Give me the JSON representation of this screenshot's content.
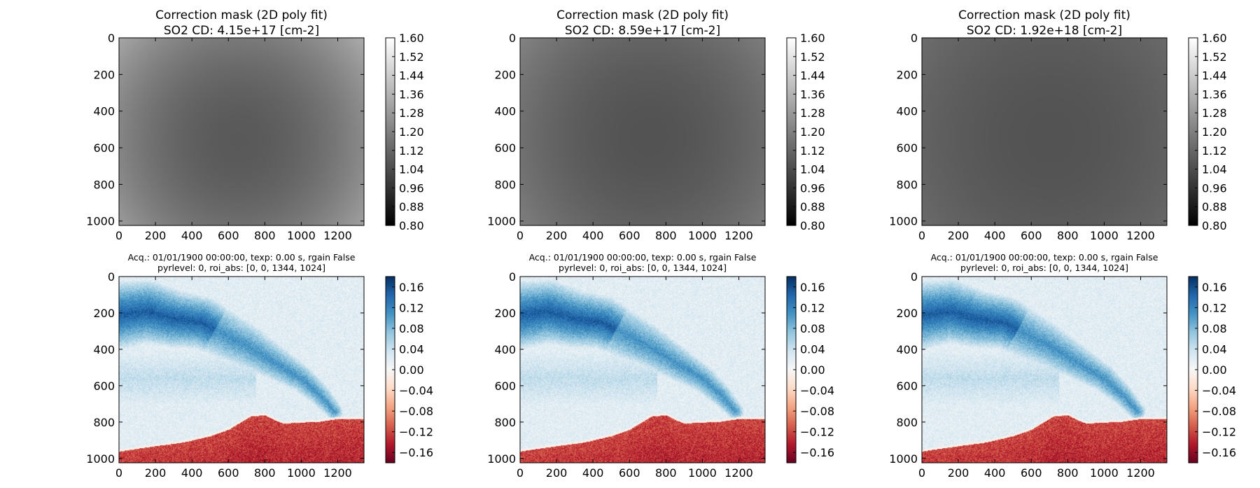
{
  "colors": {
    "mask_cmap": [
      "#000000",
      "#ffffff"
    ],
    "tau_cmap": [
      "#67001f",
      "#b2182b",
      "#d6604d",
      "#f4a582",
      "#fddbc7",
      "#f7f7f7",
      "#d1e5f0",
      "#92c5de",
      "#4393c3",
      "#2166ac",
      "#053061"
    ]
  },
  "chart_data": [
    {
      "type": "heatmap",
      "title": "Correction mask (2D poly fit)",
      "subtitle": "SO2 CD: 4.15e+17 [cm-2]",
      "x_ticks": [
        "0",
        "200",
        "400",
        "600",
        "800",
        "1000",
        "1200"
      ],
      "y_ticks": [
        "0",
        "200",
        "400",
        "600",
        "800",
        "1000"
      ],
      "xlim": [
        0,
        1344
      ],
      "ylim": [
        1024,
        0
      ],
      "colorbar": {
        "range": [
          0.8,
          1.6
        ],
        "cmap": "gray",
        "ticks": [
          "1.60",
          "1.52",
          "1.44",
          "1.36",
          "1.28",
          "1.20",
          "1.12",
          "1.04",
          "0.96",
          "0.88",
          "0.80"
        ]
      },
      "mask_model": {
        "center_x": 650,
        "center_y": 560,
        "center_value": 1.08,
        "edge_value": 1.34
      }
    },
    {
      "type": "heatmap",
      "title": "Correction mask (2D poly fit)",
      "subtitle": "SO2 CD: 8.59e+17 [cm-2]",
      "x_ticks": [
        "0",
        "200",
        "400",
        "600",
        "800",
        "1000",
        "1200"
      ],
      "y_ticks": [
        "0",
        "200",
        "400",
        "600",
        "800",
        "1000"
      ],
      "xlim": [
        0,
        1344
      ],
      "ylim": [
        1024,
        0
      ],
      "colorbar": {
        "range": [
          0.8,
          1.6
        ],
        "cmap": "gray",
        "ticks": [
          "1.60",
          "1.52",
          "1.44",
          "1.36",
          "1.28",
          "1.20",
          "1.12",
          "1.04",
          "0.96",
          "0.88",
          "0.80"
        ]
      },
      "mask_model": {
        "center_x": 700,
        "center_y": 540,
        "center_value": 1.06,
        "edge_value": 1.21
      }
    },
    {
      "type": "heatmap",
      "title": "Correction mask (2D poly fit)",
      "subtitle": "SO2 CD: 1.92e+18 [cm-2]",
      "x_ticks": [
        "0",
        "200",
        "400",
        "600",
        "800",
        "1000",
        "1200"
      ],
      "y_ticks": [
        "0",
        "200",
        "400",
        "600",
        "800",
        "1000"
      ],
      "xlim": [
        0,
        1344
      ],
      "ylim": [
        1024,
        0
      ],
      "colorbar": {
        "range": [
          0.8,
          1.6
        ],
        "cmap": "gray",
        "ticks": [
          "1.60",
          "1.52",
          "1.44",
          "1.36",
          "1.28",
          "1.20",
          "1.12",
          "1.04",
          "0.96",
          "0.88",
          "0.80"
        ]
      },
      "mask_model": {
        "center_x": 700,
        "center_y": 540,
        "center_value": 1.06,
        "edge_value": 1.14
      }
    },
    {
      "type": "heatmap",
      "title": "Acq.: 01/01/1900 00:00:00, texp: 0.00 s, rgain False",
      "subtitle": "pyrlevel: 0, roi_abs: [0, 0, 1344, 1024]",
      "x_ticks": [
        "0",
        "200",
        "400",
        "600",
        "800",
        "1000",
        "1200"
      ],
      "y_ticks": [
        "0",
        "200",
        "400",
        "600",
        "800",
        "1000"
      ],
      "xlim": [
        0,
        1344
      ],
      "ylim": [
        1024,
        0
      ],
      "colorbar": {
        "range": [
          -0.18,
          0.18
        ],
        "cmap": "RdBu",
        "ticks": [
          "0.16",
          "0.12",
          "0.08",
          "0.04",
          "0.00",
          "−0.04",
          "−0.08",
          "−0.12",
          "−0.16"
        ]
      }
    },
    {
      "type": "heatmap",
      "title": "Acq.: 01/01/1900 00:00:00, texp: 0.00 s, rgain False",
      "subtitle": "pyrlevel: 0, roi_abs: [0, 0, 1344, 1024]",
      "x_ticks": [
        "0",
        "200",
        "400",
        "600",
        "800",
        "1000",
        "1200"
      ],
      "y_ticks": [
        "0",
        "200",
        "400",
        "600",
        "800",
        "1000"
      ],
      "xlim": [
        0,
        1344
      ],
      "ylim": [
        1024,
        0
      ],
      "colorbar": {
        "range": [
          -0.18,
          0.18
        ],
        "cmap": "RdBu",
        "ticks": [
          "0.16",
          "0.12",
          "0.08",
          "0.04",
          "0.00",
          "−0.04",
          "−0.08",
          "−0.12",
          "−0.16"
        ]
      }
    },
    {
      "type": "heatmap",
      "title": "Acq.: 01/01/1900 00:00:00, texp: 0.00 s, rgain False",
      "subtitle": "pyrlevel: 0, roi_abs: [0, 0, 1344, 1024]",
      "x_ticks": [
        "0",
        "200",
        "400",
        "600",
        "800",
        "1000",
        "1200"
      ],
      "y_ticks": [
        "0",
        "200",
        "400",
        "600",
        "800",
        "1000"
      ],
      "xlim": [
        0,
        1344
      ],
      "ylim": [
        1024,
        0
      ],
      "colorbar": {
        "range": [
          -0.18,
          0.18
        ],
        "cmap": "RdBu",
        "ticks": [
          "0.16",
          "0.12",
          "0.08",
          "0.04",
          "0.00",
          "−0.04",
          "−0.08",
          "−0.12",
          "−0.16"
        ]
      }
    }
  ],
  "tau_scene": {
    "ground_profile": [
      [
        0,
        955
      ],
      [
        60,
        945
      ],
      [
        200,
        925
      ],
      [
        350,
        905
      ],
      [
        500,
        870
      ],
      [
        600,
        835
      ],
      [
        720,
        762
      ],
      [
        800,
        755
      ],
      [
        860,
        785
      ],
      [
        900,
        800
      ],
      [
        1000,
        795
      ],
      [
        1100,
        790
      ],
      [
        1200,
        775
      ],
      [
        1344,
        778
      ]
    ],
    "ground_value": -0.12,
    "sky_value": 0.02,
    "haze_value": 0.045,
    "plume_value": 0.11,
    "plume_core_value": 0.15,
    "plume_path": [
      [
        0,
        210
      ],
      [
        150,
        190
      ],
      [
        300,
        230
      ],
      [
        450,
        250
      ],
      [
        600,
        330
      ],
      [
        700,
        380
      ],
      [
        800,
        440
      ],
      [
        900,
        500
      ],
      [
        1000,
        560
      ],
      [
        1100,
        650
      ],
      [
        1180,
        740
      ]
    ]
  }
}
